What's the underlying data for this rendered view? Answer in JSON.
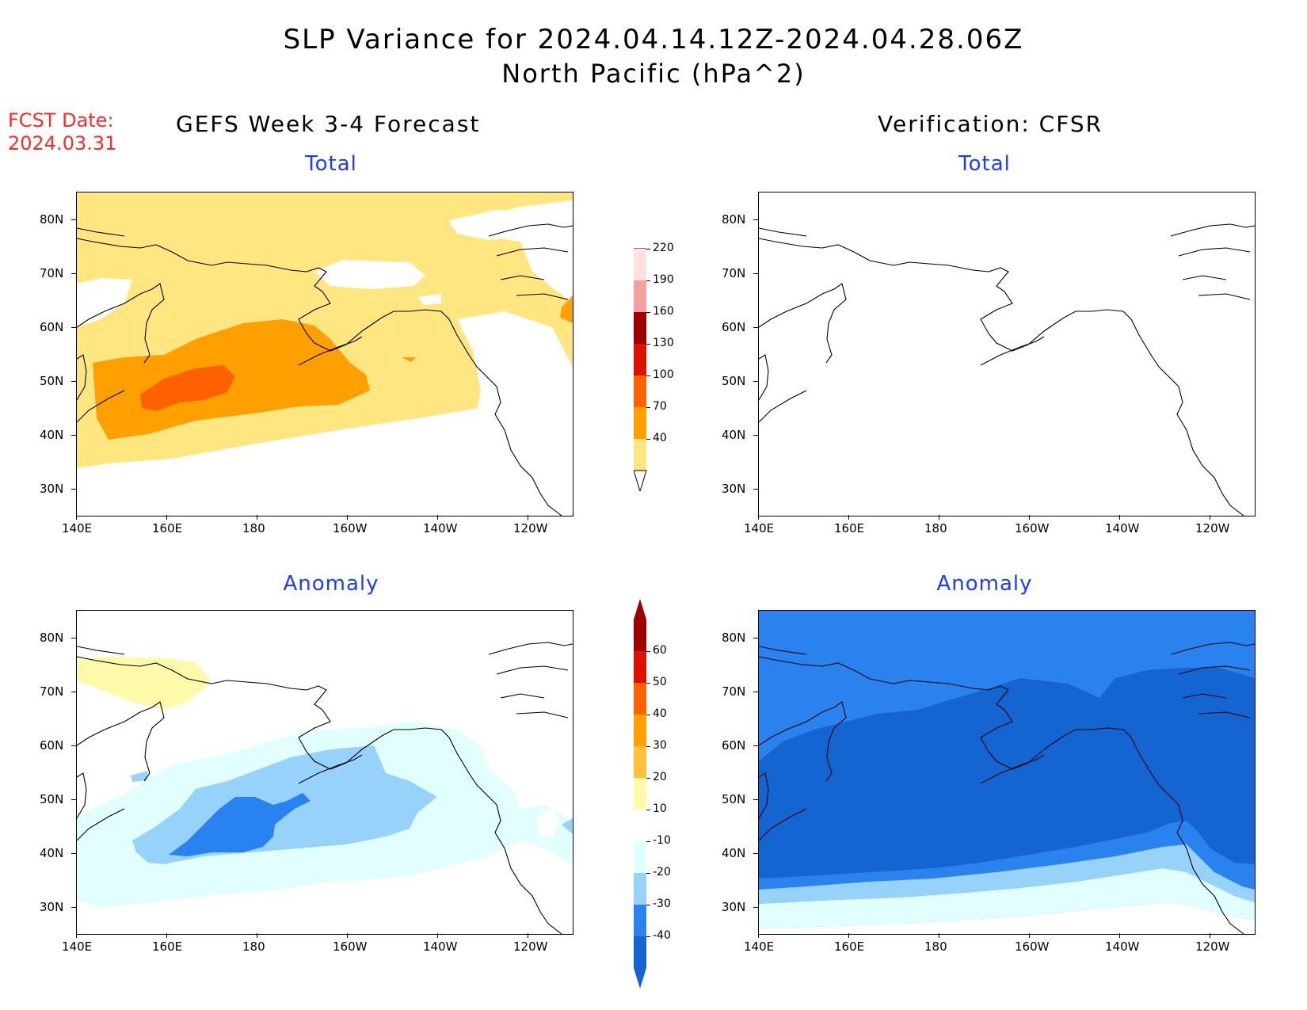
{
  "header": {
    "title": "SLP Variance for 2024.04.14.12Z-2024.04.28.06Z",
    "subtitle": "North Pacific (hPa^2)",
    "fcst_date": "FCST Date:\n2024.03.31"
  },
  "columns": {
    "left": "GEFS Week 3-4 Forecast",
    "right": "Verification: CFSR"
  },
  "panels": {
    "forecast_total_title": "Total",
    "verification_total_title": "Total",
    "forecast_anomaly_title": "Anomaly",
    "verification_anomaly_title": "Anomaly"
  },
  "axes": {
    "lat_labels": [
      "80N",
      "70N",
      "60N",
      "50N",
      "40N",
      "30N"
    ],
    "lon_labels": [
      "140E",
      "160E",
      "180",
      "160W",
      "140W",
      "120W"
    ]
  },
  "colorbars": {
    "total": {
      "labels": [
        "40",
        "70",
        "100",
        "130",
        "160",
        "190",
        "220"
      ],
      "colors": [
        "#ffe680",
        "#ffa000",
        "#ff6000",
        "#e01000",
        "#a00000",
        "#f4a0a0",
        "#ffe0e0"
      ]
    },
    "anomaly": {
      "labels": [
        "-40",
        "-30",
        "-20",
        "-10",
        "10",
        "20",
        "30",
        "40",
        "50",
        "60"
      ],
      "colors": [
        "#1464d2",
        "#2882f0",
        "#96d2fa",
        "#e1ffff",
        "#ffffff",
        "#fffaaa",
        "#ffc03c",
        "#ffa000",
        "#ff6000",
        "#e01000",
        "#a00000"
      ]
    }
  },
  "colors": {
    "title_blue": "#1c3cff",
    "fcst_red": "#ff2a2a",
    "verification_anomaly_base": "#2a82ee",
    "verification_anomaly_core": "#1464d2"
  }
}
